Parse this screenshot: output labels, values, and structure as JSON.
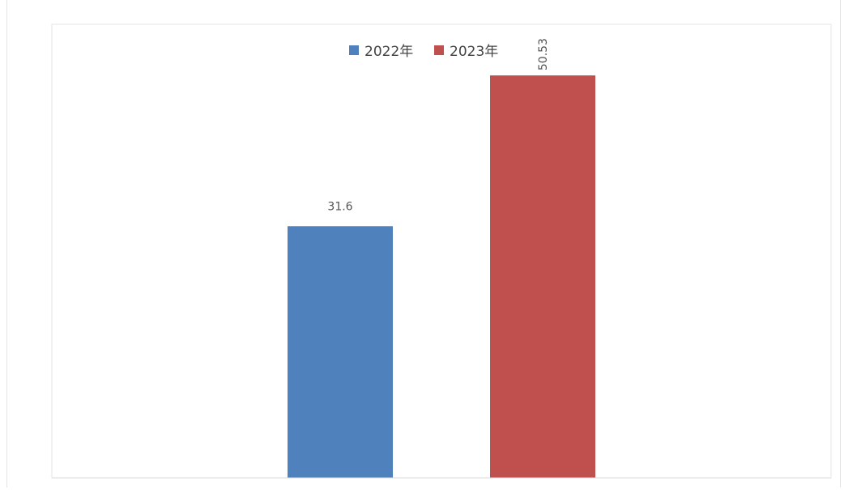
{
  "chart_data": {
    "type": "bar",
    "title": "",
    "xlabel": "",
    "ylabel": "",
    "ylim": [
      0,
      60
    ],
    "grid": false,
    "legend_position": "top-center",
    "series": [
      {
        "name": "2022年",
        "value": 31.6,
        "label": "31.6",
        "color": "#4f81bd"
      },
      {
        "name": "2023年",
        "value": 50.53,
        "label": "50.53",
        "color": "#c0504d"
      }
    ]
  }
}
